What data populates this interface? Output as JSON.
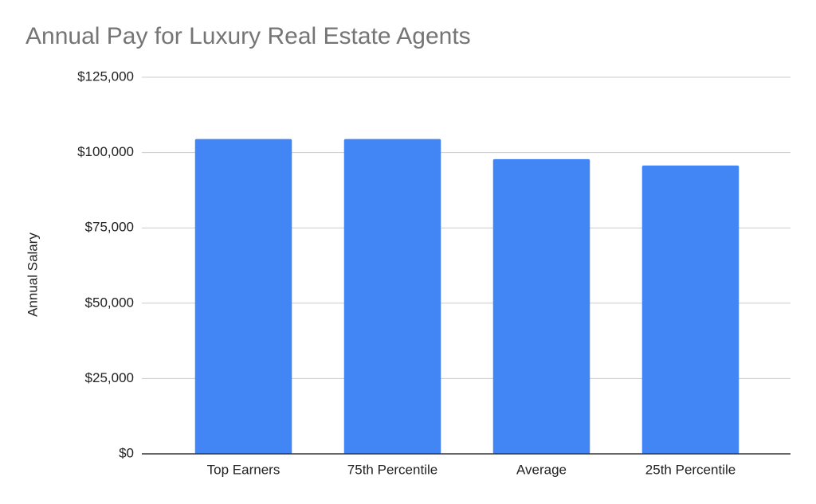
{
  "chart_data": {
    "type": "bar",
    "title": "Annual Pay for Luxury Real Estate Agents",
    "y_label": "Annual Salary",
    "categories": [
      "Top Earners",
      "75th Percentile",
      "Average",
      "25th Percentile"
    ],
    "values": [
      104500,
      104500,
      97800,
      95700
    ],
    "color": "#4285f4",
    "ylim": [
      0,
      125000
    ],
    "yticks": [
      {
        "value": 0,
        "label": "$0"
      },
      {
        "value": 25000,
        "label": "$25,000"
      },
      {
        "value": 50000,
        "label": "$50,000"
      },
      {
        "value": 75000,
        "label": "$75,000"
      },
      {
        "value": 100000,
        "label": "$100,000"
      },
      {
        "value": 125000,
        "label": "$125,000"
      }
    ],
    "grid": true
  }
}
